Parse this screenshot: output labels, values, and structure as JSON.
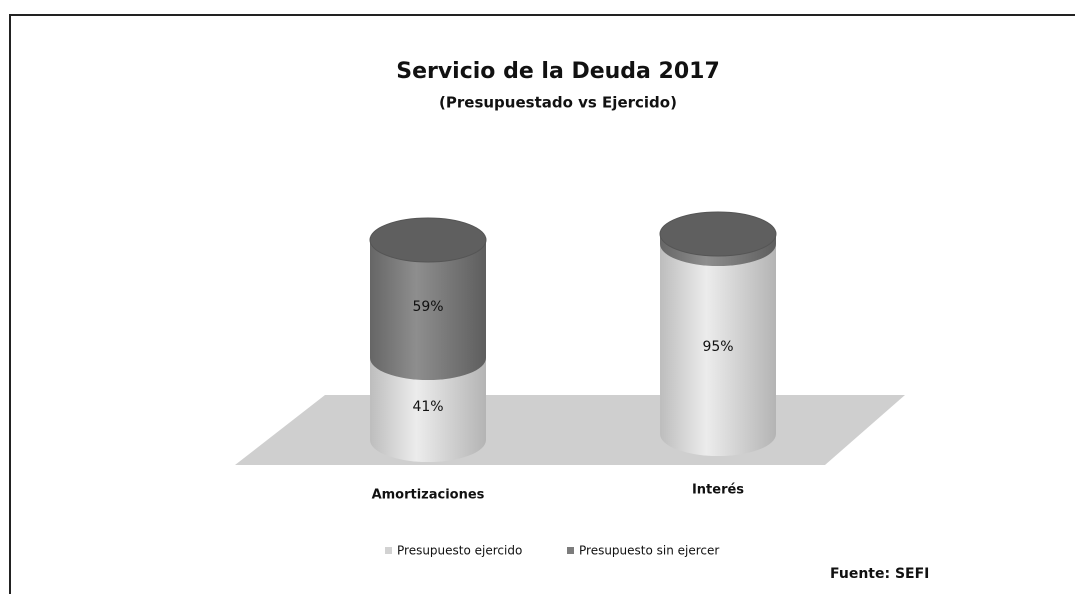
{
  "chart_data": {
    "type": "bar",
    "title": "Servicio de la Deuda 2017",
    "subtitle": "(Presupuestado vs Ejercido)",
    "categories": [
      "Amortizaciones",
      "Interés"
    ],
    "series": [
      {
        "name": "Presupuesto ejercido",
        "color": "#d2d2d2",
        "values": [
          41,
          95
        ],
        "value_labels": [
          "41%",
          "95%"
        ]
      },
      {
        "name": "Presupuesto sin ejercer",
        "color": "#7c7c7c",
        "values": [
          59,
          5
        ],
        "value_labels": [
          "59%",
          "5%"
        ]
      }
    ],
    "stacked": true,
    "legend": "bottom",
    "annotation": "Fuente: SEFI"
  }
}
